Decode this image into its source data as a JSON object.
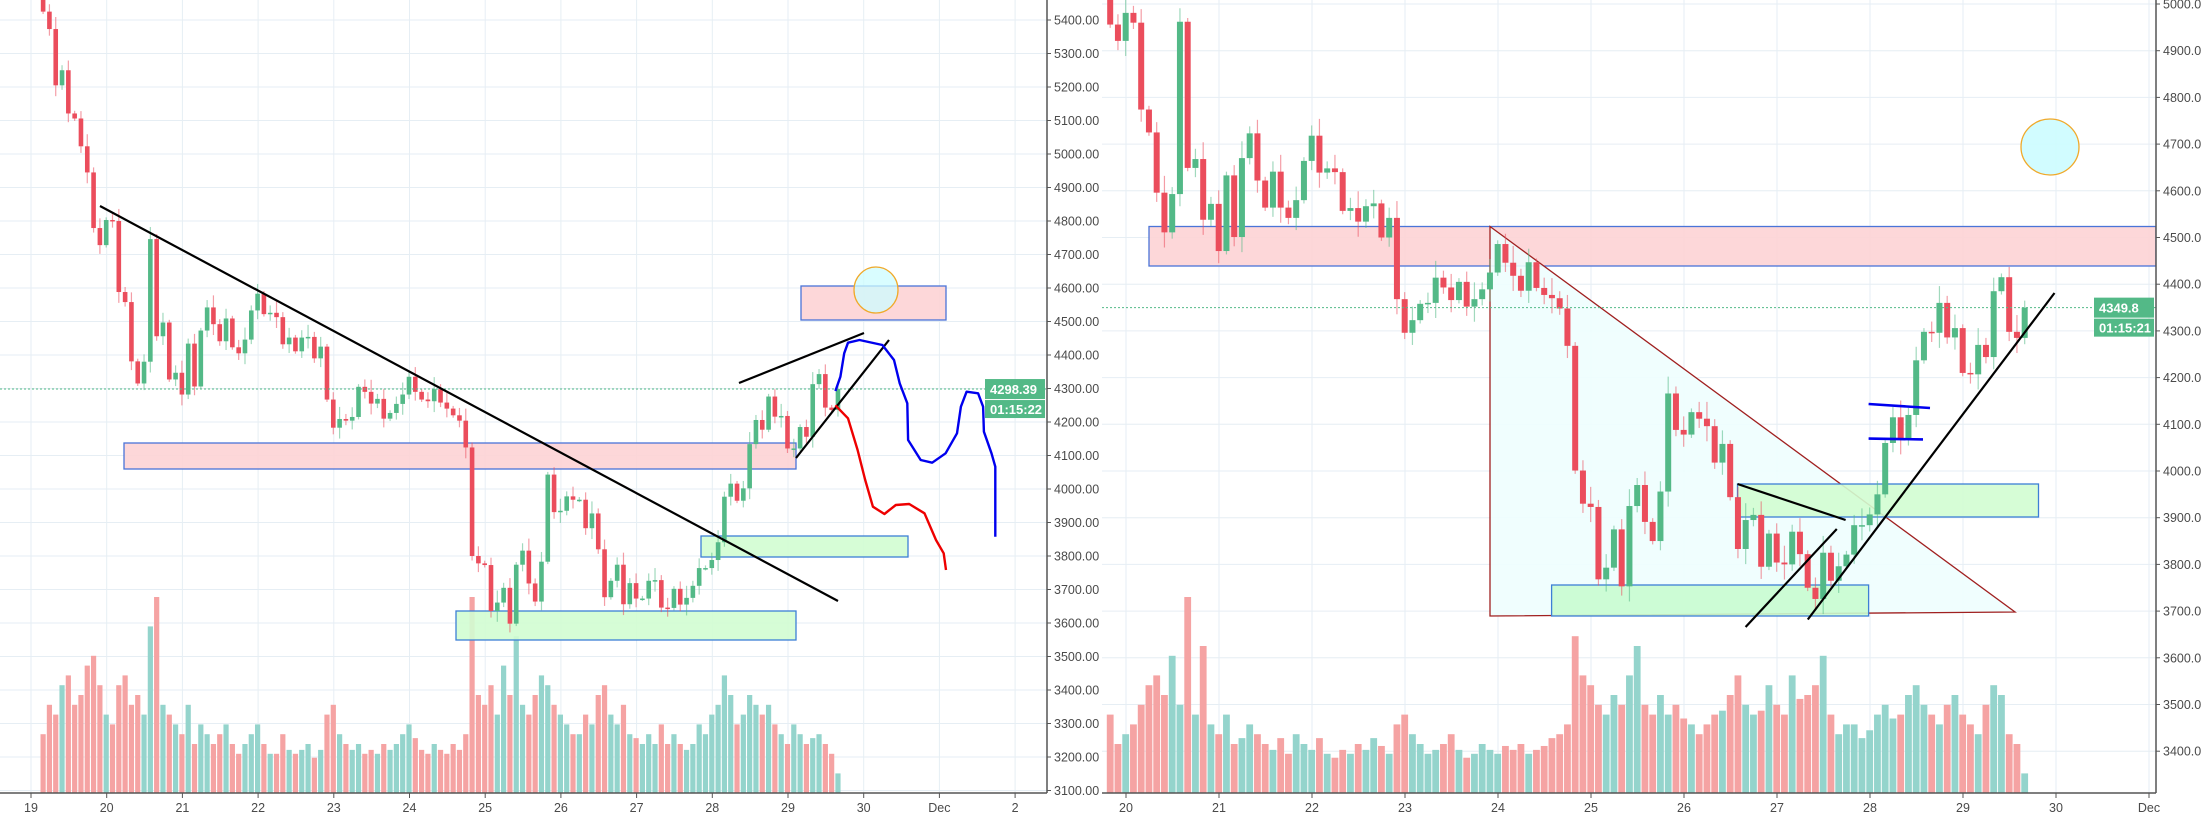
{
  "colors": {
    "up": "#53b987",
    "down": "#eb4d5c",
    "volume_up": "#94d4cc",
    "volume_down": "#f5a3a3",
    "grid": "#e6eef4",
    "axis": "#555555",
    "resistance_zone": "#fdd3d5",
    "support_zone": "#d2fdd2",
    "zone_border": "#4a74d8",
    "target_circle_fill": "#ccfcff",
    "target_circle_stroke": "#f0a92a",
    "triangle_fill": "#eefefe",
    "triangle_stroke": "#a02020",
    "blue_path": "#0000ee",
    "red_path": "#ee0000"
  },
  "chart_data": [
    {
      "type": "candlestick",
      "interval": "2h",
      "x_start": "Nov 19 04:00",
      "ylim": [
        3100,
        5400
      ],
      "price_labels": [
        "5400.00",
        "5300.00",
        "5200.00",
        "5100.00",
        "5000.00",
        "4900.00",
        "4800.00",
        "4700.00",
        "4600.00",
        "4500.00",
        "4400.00",
        "4300.00",
        "4200.00",
        "4100.00",
        "4000.00",
        "3900.00",
        "3800.00",
        "3700.00",
        "3600.00",
        "3500.00",
        "3400.00",
        "3300.00",
        "3200.00",
        "3100.00"
      ],
      "date_ticks": [
        {
          "day": 19,
          "label": "19"
        },
        {
          "day": 20,
          "label": "20"
        },
        {
          "day": 21,
          "label": "21"
        },
        {
          "day": 22,
          "label": "22"
        },
        {
          "day": 23,
          "label": "23"
        },
        {
          "day": 24,
          "label": "24"
        },
        {
          "day": 25,
          "label": "25"
        },
        {
          "day": 26,
          "label": "26"
        },
        {
          "day": 27,
          "label": "27"
        },
        {
          "day": 28,
          "label": "28"
        },
        {
          "day": 29,
          "label": "29"
        },
        {
          "day": 30,
          "label": "30"
        },
        {
          "day": 31,
          "label": "Dec"
        },
        {
          "day": 32,
          "label": "2"
        }
      ],
      "last_price": 4298.39,
      "last_price_label": "4298.39",
      "countdown": "01:15:22",
      "first_open": 5470,
      "closes": [
        5425,
        5373,
        5205,
        5250,
        5121,
        5106,
        5023,
        4945,
        4779,
        4728,
        4803,
        4800,
        4588,
        4558,
        4381,
        4315,
        4380,
        4746,
        4456,
        4497,
        4327,
        4347,
        4282,
        4434,
        4306,
        4473,
        4542,
        4492,
        4441,
        4509,
        4423,
        4405,
        4446,
        4533,
        4583,
        4522,
        4526,
        4513,
        4432,
        4452,
        4411,
        4452,
        4454,
        4390,
        4425,
        4267,
        4183,
        4209,
        4204,
        4215,
        4305,
        4290,
        4255,
        4269,
        4210,
        4227,
        4254,
        4282,
        4335,
        4290,
        4267,
        4262,
        4298,
        4258,
        4240,
        4220,
        4204,
        4124,
        3800,
        3778,
        3773,
        3636,
        3661,
        3705,
        3598,
        3774,
        3816,
        3718,
        3664,
        3783,
        4043,
        3931,
        3935,
        3978,
        3968,
        3968,
        3883,
        3927,
        3820,
        3677,
        3726,
        3774,
        3656,
        3719,
        3673,
        3673,
        3726,
        3728,
        3646,
        3645,
        3702,
        3655,
        3675,
        3711,
        3764,
        3764,
        3788,
        3841,
        3977,
        4016,
        3965,
        4002,
        4134,
        4206,
        4177,
        4276,
        4216,
        4218,
        4121,
        4121,
        4185,
        4156,
        4313,
        4343,
        4243,
        4236,
        4298.39
      ],
      "volume_relative": [
        30,
        45,
        40,
        55,
        60,
        45,
        50,
        65,
        70,
        55,
        40,
        35,
        55,
        60,
        45,
        50,
        40,
        85,
        100,
        45,
        40,
        35,
        30,
        45,
        25,
        35,
        30,
        25,
        30,
        35,
        25,
        20,
        25,
        30,
        35,
        25,
        20,
        20,
        30,
        22,
        20,
        22,
        25,
        18,
        22,
        40,
        45,
        30,
        25,
        22,
        25,
        20,
        22,
        20,
        25,
        22,
        25,
        30,
        35,
        28,
        22,
        20,
        25,
        22,
        20,
        25,
        22,
        30,
        100,
        50,
        45,
        55,
        40,
        65,
        50,
        80,
        45,
        40,
        50,
        60,
        55,
        45,
        40,
        35,
        30,
        30,
        40,
        35,
        50,
        55,
        40,
        35,
        45,
        30,
        28,
        25,
        30,
        25,
        35,
        25,
        30,
        25,
        22,
        25,
        35,
        30,
        40,
        45,
        60,
        50,
        35,
        40,
        50,
        45,
        40,
        45,
        35,
        30,
        25,
        35,
        30,
        25,
        28,
        30,
        25,
        20,
        10
      ]
    },
    {
      "type": "candlestick",
      "interval": "2h",
      "x_start": "Nov 19 20:00",
      "ylim": [
        3400,
        5000
      ],
      "price_labels": [
        "5000.00",
        "4900.00",
        "4800.00",
        "4700.00",
        "4600.00",
        "4500.00",
        "4400.00",
        "4300.00",
        "4200.00",
        "4100.00",
        "4000.00",
        "3900.00",
        "3800.00",
        "3700.00",
        "3600.00",
        "3500.00",
        "3400.00"
      ],
      "date_ticks": [
        {
          "day": 20,
          "label": "20"
        },
        {
          "day": 21,
          "label": "21"
        },
        {
          "day": 22,
          "label": "22"
        },
        {
          "day": 23,
          "label": "23"
        },
        {
          "day": 24,
          "label": "24"
        },
        {
          "day": 25,
          "label": "25"
        },
        {
          "day": 26,
          "label": "26"
        },
        {
          "day": 27,
          "label": "27"
        },
        {
          "day": 28,
          "label": "28"
        },
        {
          "day": 29,
          "label": "29"
        },
        {
          "day": 30,
          "label": "30"
        },
        {
          "day": 31,
          "label": "Dec"
        }
      ],
      "last_price": 4349.8,
      "last_price_label": "4349.8",
      "countdown": "01:15:21",
      "first_open": 5010,
      "closes": [
        4956,
        4921,
        4981,
        4960,
        4774,
        4725,
        4596,
        4511,
        4593,
        4962,
        4649,
        4668,
        4538,
        4572,
        4471,
        4633,
        4501,
        4670,
        4723,
        4622,
        4564,
        4641,
        4564,
        4542,
        4580,
        4664,
        4718,
        4639,
        4648,
        4640,
        4557,
        4563,
        4534,
        4567,
        4573,
        4500,
        4542,
        4368,
        4296,
        4323,
        4358,
        4360,
        4414,
        4393,
        4366,
        4405,
        4352,
        4368,
        4389,
        4425,
        4486,
        4446,
        4418,
        4386,
        4447,
        4392,
        4377,
        4370,
        4348,
        4268,
        4001,
        3930,
        3923,
        3768,
        3793,
        3875,
        3753,
        3925,
        3970,
        3891,
        3850,
        3956,
        4166,
        4088,
        4078,
        4126,
        4112,
        4096,
        4018,
        4058,
        3944,
        3833,
        3895,
        3906,
        3795,
        3866,
        3804,
        3800,
        3870,
        3822,
        3750,
        3726,
        3825,
        3765,
        3796,
        3821,
        3884,
        3884,
        3907,
        3950,
        4060,
        4115,
        4068,
        4120,
        4237,
        4298,
        4296,
        4360,
        4286,
        4306,
        4210,
        4207,
        4270,
        4244,
        4385,
        4415,
        4298,
        4285,
        4349.8
      ],
      "volume_relative": [
        40,
        25,
        30,
        35,
        45,
        55,
        60,
        50,
        70,
        45,
        100,
        40,
        75,
        35,
        30,
        40,
        25,
        28,
        35,
        30,
        25,
        22,
        28,
        20,
        30,
        25,
        22,
        28,
        20,
        18,
        22,
        20,
        25,
        22,
        28,
        24,
        20,
        35,
        40,
        30,
        25,
        20,
        22,
        25,
        30,
        22,
        18,
        20,
        25,
        22,
        20,
        24,
        22,
        25,
        20,
        22,
        24,
        28,
        30,
        35,
        80,
        60,
        55,
        45,
        40,
        50,
        45,
        60,
        75,
        45,
        40,
        50,
        40,
        45,
        38,
        35,
        30,
        35,
        40,
        42,
        50,
        60,
        45,
        40,
        42,
        55,
        45,
        40,
        60,
        48,
        50,
        55,
        70,
        40,
        30,
        35,
        35,
        28,
        32,
        40,
        45,
        38,
        40,
        50,
        55,
        45,
        40,
        35,
        45,
        50,
        40,
        35,
        30,
        45,
        55,
        50,
        30,
        25,
        10
      ]
    }
  ]
}
